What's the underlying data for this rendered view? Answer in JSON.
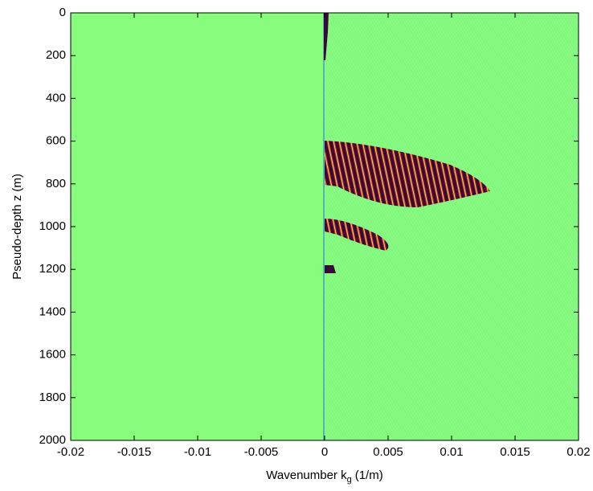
{
  "chart_data": {
    "type": "image",
    "xlabel": [
      "Wavenumber k",
      "g",
      "(1/m)"
    ],
    "ylabel": "Pseudo-depth z (m)",
    "xlim": [
      -0.02,
      0.02
    ],
    "xticks": [
      -0.02,
      -0.015,
      -0.01,
      -0.005,
      0,
      0.005,
      0.01,
      0.015,
      0.02
    ],
    "ylim": [
      2000,
      0
    ],
    "yticks": [
      0,
      200,
      400,
      600,
      800,
      1000,
      1200,
      1400,
      1600,
      1800,
      2000
    ],
    "background_color": "#88fc7c"
  }
}
